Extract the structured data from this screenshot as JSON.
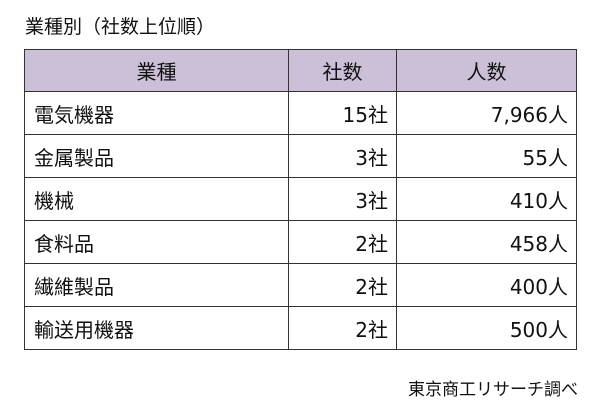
{
  "title": "業種別（社数上位順）",
  "table": {
    "headers": [
      "業種",
      "社数",
      "人数"
    ],
    "rows": [
      {
        "industry": "電気機器",
        "companies": "15社",
        "people": "7,966人"
      },
      {
        "industry": "金属製品",
        "companies": "3社",
        "people": "55人"
      },
      {
        "industry": "機械",
        "companies": "3社",
        "people": "410人"
      },
      {
        "industry": "食料品",
        "companies": "2社",
        "people": "458人"
      },
      {
        "industry": "繊維製品",
        "companies": "2社",
        "people": "400人"
      },
      {
        "industry": "輸送用機器",
        "companies": "2社",
        "people": "500人"
      }
    ]
  },
  "source": "東京商工リサーチ調べ",
  "colors": {
    "header_background": "#ccc0d9",
    "border": "#333333"
  }
}
